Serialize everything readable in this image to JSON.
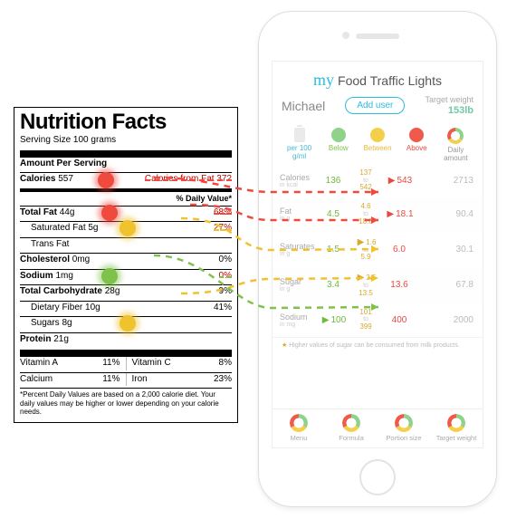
{
  "colors": {
    "green": "#7fc24b",
    "yellow": "#f0c22e",
    "red": "#ef4a3d",
    "cyan": "#29bde0",
    "teal": "#72c9a5",
    "grey": "#999999"
  },
  "nutrition_facts": {
    "title": "Nutrition Facts",
    "serving": "Serving Size  100 grams",
    "amount_heading": "Amount Per Serving",
    "cal_label": "Calories",
    "cal_value": "557",
    "cal_from_fat": "Calories from Fat 372",
    "dv_heading": "% Daily Value*",
    "rows": [
      {
        "key": "total_fat",
        "label": "Total Fat",
        "val": "44g",
        "dv": "68%",
        "bold": true,
        "marker": "red"
      },
      {
        "key": "sat_fat",
        "label": "Saturated Fat",
        "val": "5g",
        "dv": "27%",
        "sub": true,
        "marker": "yellow"
      },
      {
        "key": "trans_fat",
        "label": "Trans Fat",
        "val": "",
        "dv": "",
        "sub": true
      },
      {
        "key": "cholesterol",
        "label": "Cholesterol",
        "val": "0mg",
        "dv": "0%",
        "bold": true
      },
      {
        "key": "sodium",
        "label": "Sodium",
        "val": "1mg",
        "dv": "0%",
        "bold": true,
        "marker": "green"
      },
      {
        "key": "carb",
        "label": "Total Carbohydrate",
        "val": "28g",
        "dv": "9%",
        "bold": true
      },
      {
        "key": "fiber",
        "label": "Dietary Fiber",
        "val": "10g",
        "dv": "41%",
        "sub": true
      },
      {
        "key": "sugars",
        "label": "Sugars",
        "val": "8g",
        "dv": "",
        "sub": true,
        "marker": "yellow"
      },
      {
        "key": "protein",
        "label": "Protein",
        "val": "21g",
        "dv": "",
        "bold": true
      }
    ],
    "vitamins": [
      {
        "l": "Vitamin A",
        "lv": "11%",
        "r": "Vitamin C",
        "rv": "8%"
      },
      {
        "l": "Calcium",
        "lv": "11%",
        "r": "Iron",
        "rv": "23%"
      }
    ],
    "footnote": "*Percent Daily Values are based on a 2,000 calorie diet. Your daily values may be higher or lower depending on your calorie needs."
  },
  "app": {
    "title_prefix": "my",
    "title": "Food Traffic Lights",
    "user": "Michael",
    "add_user": "Add user",
    "target_weight_label": "Target weight",
    "target_weight_value": "153lb",
    "legend": {
      "per": "per 100 g/ml",
      "below": "Below",
      "between": "Between",
      "above": "Above",
      "daily": "Daily amount"
    },
    "nutrients": [
      {
        "name": "Calories",
        "unit": "in kcal",
        "below": "136",
        "bt_lo": "137",
        "bt_hi": "542",
        "above": "543",
        "daily": "2713",
        "current": "above"
      },
      {
        "name": "Fat",
        "unit": "in g",
        "below": "4.5",
        "bt_lo": "4.6",
        "bt_hi": "18.0",
        "above": "18.1",
        "daily": "90.4",
        "current": "above"
      },
      {
        "name": "Saturates",
        "unit": "in g",
        "below": "1.5",
        "bt_lo": "1.6",
        "bt_hi": "5.9",
        "above": "6.0",
        "daily": "30.1",
        "current": "between"
      },
      {
        "name": "Sugar",
        "unit": "in g",
        "below": "3.4",
        "bt_lo": "3.5",
        "bt_hi": "13.5",
        "above": "13.6",
        "daily": "67.8",
        "current": "between"
      },
      {
        "name": "Sodium",
        "unit": "in mg",
        "below": "100",
        "bt_lo": "101",
        "bt_hi": "399",
        "above": "400",
        "daily": "2000",
        "current": "below"
      }
    ],
    "hint": "Higher values of sugar can be consumed from milk products.",
    "tabs": [
      "Menu",
      "Formula",
      "Portion size",
      "Target weight"
    ]
  },
  "connectors": [
    {
      "color": "#ef4a3d",
      "from": [
        170,
        196
      ],
      "mid": [
        300,
        212
      ],
      "to": [
        418,
        212
      ]
    },
    {
      "color": "#ef4a3d",
      "from": [
        210,
        226
      ],
      "mid": [
        300,
        243
      ],
      "to": [
        418,
        243
      ]
    },
    {
      "color": "#f0c22e",
      "from": [
        200,
        241
      ],
      "mid": [
        300,
        276
      ],
      "to": [
        418,
        275
      ]
    },
    {
      "color": "#f0c22e",
      "from": [
        200,
        324
      ],
      "mid": [
        300,
        308
      ],
      "to": [
        418,
        307
      ]
    },
    {
      "color": "#7fc24b",
      "from": [
        170,
        282
      ],
      "mid": [
        300,
        340
      ],
      "to": [
        418,
        339
      ]
    }
  ]
}
